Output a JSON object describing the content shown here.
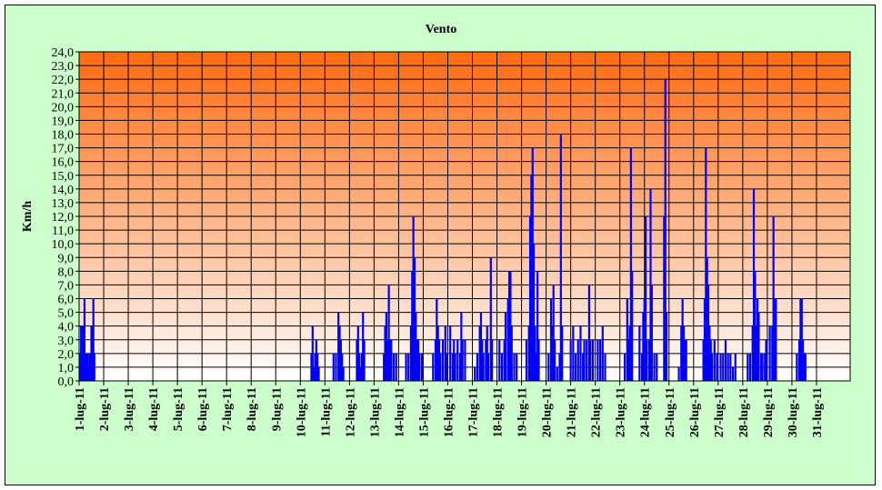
{
  "chart_data": {
    "type": "bar",
    "title": "Vento",
    "ylabel": "Km/h",
    "xlabel": "",
    "ylim": [
      0,
      24
    ],
    "ytick_step": 1,
    "grid": true,
    "legend": false,
    "colors": {
      "series": "#0000ff",
      "plot_top": "#ff6a10",
      "plot_bottom": "#ffffff",
      "chart_background": "#ccffcc",
      "grid": "#000000"
    },
    "x_tick_labels": [
      "1-lug-11",
      "2-lug-11",
      "3-lug-11",
      "4-lug-11",
      "5-lug-11",
      "6-lug-11",
      "7-lug-11",
      "8-lug-11",
      "9-lug-11",
      "10-lug-11",
      "11-lug-11",
      "12-lug-11",
      "13-lug-11",
      "14-lug-11",
      "15-lug-11",
      "16-lug-11",
      "17-lug-11",
      "18-lug-11",
      "19-lug-11",
      "20-lug-11",
      "21-lug-11",
      "22-lug-11",
      "23-lug-11",
      "24-lug-11",
      "25-lug-11",
      "26-lug-11",
      "27-lug-11",
      "28-lug-11",
      "29-lug-11",
      "30-lug-11",
      "31-lug-11"
    ],
    "x_value_unit": "days",
    "series": [
      {
        "points": [
          [
            1.05,
            2
          ],
          [
            1.08,
            4
          ],
          [
            1.12,
            1
          ],
          [
            1.15,
            4
          ],
          [
            1.18,
            2
          ],
          [
            1.22,
            6
          ],
          [
            1.26,
            1
          ],
          [
            1.3,
            2
          ],
          [
            1.34,
            2
          ],
          [
            1.38,
            1
          ],
          [
            1.42,
            2
          ],
          [
            1.46,
            2
          ],
          [
            1.5,
            4
          ],
          [
            1.54,
            4
          ],
          [
            1.58,
            6
          ],
          [
            1.62,
            2
          ],
          [
            10.45,
            2
          ],
          [
            10.5,
            4
          ],
          [
            10.55,
            1
          ],
          [
            10.6,
            2
          ],
          [
            10.65,
            3
          ],
          [
            10.7,
            2
          ],
          [
            10.75,
            1
          ],
          [
            11.35,
            2
          ],
          [
            11.45,
            2
          ],
          [
            11.55,
            5
          ],
          [
            11.6,
            4
          ],
          [
            11.65,
            3
          ],
          [
            11.7,
            2
          ],
          [
            11.75,
            1
          ],
          [
            12.3,
            3
          ],
          [
            12.35,
            4
          ],
          [
            12.4,
            2
          ],
          [
            12.45,
            1
          ],
          [
            12.5,
            2
          ],
          [
            12.55,
            5
          ],
          [
            12.6,
            3
          ],
          [
            13.4,
            2
          ],
          [
            13.45,
            4
          ],
          [
            13.5,
            5
          ],
          [
            13.55,
            3
          ],
          [
            13.6,
            7
          ],
          [
            13.65,
            3
          ],
          [
            13.7,
            3
          ],
          [
            13.8,
            2
          ],
          [
            13.9,
            2
          ],
          [
            14.3,
            2
          ],
          [
            14.4,
            2
          ],
          [
            14.5,
            4
          ],
          [
            14.55,
            8
          ],
          [
            14.6,
            12
          ],
          [
            14.65,
            9
          ],
          [
            14.7,
            5
          ],
          [
            14.75,
            3
          ],
          [
            14.8,
            3
          ],
          [
            14.85,
            2
          ],
          [
            14.95,
            2
          ],
          [
            15.4,
            2
          ],
          [
            15.5,
            3
          ],
          [
            15.55,
            6
          ],
          [
            15.6,
            4
          ],
          [
            15.65,
            3
          ],
          [
            15.7,
            2
          ],
          [
            15.8,
            3
          ],
          [
            15.9,
            4
          ],
          [
            15.95,
            2
          ],
          [
            16.1,
            4
          ],
          [
            16.2,
            2
          ],
          [
            16.25,
            3
          ],
          [
            16.3,
            2
          ],
          [
            16.4,
            3
          ],
          [
            16.5,
            2
          ],
          [
            16.55,
            5
          ],
          [
            16.6,
            3
          ],
          [
            16.7,
            3
          ],
          [
            17.1,
            1
          ],
          [
            17.2,
            2
          ],
          [
            17.3,
            4
          ],
          [
            17.35,
            5
          ],
          [
            17.4,
            3
          ],
          [
            17.45,
            2
          ],
          [
            17.55,
            3
          ],
          [
            17.6,
            4
          ],
          [
            17.65,
            2
          ],
          [
            17.75,
            9
          ],
          [
            17.8,
            3
          ],
          [
            18.1,
            3
          ],
          [
            18.2,
            2
          ],
          [
            18.3,
            3
          ],
          [
            18.35,
            5
          ],
          [
            18.45,
            6
          ],
          [
            18.5,
            8
          ],
          [
            18.55,
            8
          ],
          [
            18.6,
            4
          ],
          [
            18.7,
            2
          ],
          [
            18.8,
            2
          ],
          [
            19.2,
            3
          ],
          [
            19.3,
            4
          ],
          [
            19.35,
            12
          ],
          [
            19.4,
            15
          ],
          [
            19.45,
            17
          ],
          [
            19.5,
            10
          ],
          [
            19.55,
            4
          ],
          [
            19.6,
            2
          ],
          [
            19.65,
            8
          ],
          [
            19.7,
            3
          ],
          [
            20.1,
            2
          ],
          [
            20.2,
            6
          ],
          [
            20.25,
            4
          ],
          [
            20.3,
            7
          ],
          [
            20.35,
            3
          ],
          [
            20.45,
            1
          ],
          [
            20.55,
            2
          ],
          [
            20.6,
            18
          ],
          [
            20.65,
            4
          ],
          [
            21.0,
            3
          ],
          [
            21.1,
            4
          ],
          [
            21.2,
            2
          ],
          [
            21.3,
            3
          ],
          [
            21.4,
            4
          ],
          [
            21.5,
            2
          ],
          [
            21.55,
            3
          ],
          [
            21.65,
            3
          ],
          [
            21.75,
            7
          ],
          [
            21.8,
            3
          ],
          [
            21.9,
            3
          ],
          [
            22.1,
            3
          ],
          [
            22.2,
            3
          ],
          [
            22.3,
            4
          ],
          [
            22.4,
            2
          ],
          [
            23.2,
            2
          ],
          [
            23.3,
            6
          ],
          [
            23.35,
            3
          ],
          [
            23.4,
            4
          ],
          [
            23.45,
            17
          ],
          [
            23.5,
            8
          ],
          [
            23.8,
            4
          ],
          [
            23.9,
            2
          ],
          [
            23.95,
            5
          ],
          [
            24.0,
            6
          ],
          [
            24.05,
            12
          ],
          [
            24.1,
            3
          ],
          [
            24.2,
            3
          ],
          [
            24.25,
            14
          ],
          [
            24.3,
            7
          ],
          [
            24.4,
            2
          ],
          [
            24.5,
            2
          ],
          [
            24.8,
            12
          ],
          [
            24.85,
            22
          ],
          [
            24.9,
            5
          ],
          [
            25.4,
            1
          ],
          [
            25.5,
            4
          ],
          [
            25.55,
            6
          ],
          [
            25.6,
            4
          ],
          [
            25.65,
            3
          ],
          [
            25.7,
            3
          ],
          [
            26.4,
            3
          ],
          [
            26.45,
            6
          ],
          [
            26.5,
            17
          ],
          [
            26.55,
            9
          ],
          [
            26.6,
            7
          ],
          [
            26.65,
            4
          ],
          [
            26.7,
            3
          ],
          [
            26.75,
            2
          ],
          [
            26.85,
            3
          ],
          [
            26.95,
            2
          ],
          [
            27.1,
            2
          ],
          [
            27.2,
            2
          ],
          [
            27.3,
            3
          ],
          [
            27.4,
            2
          ],
          [
            27.5,
            2
          ],
          [
            27.6,
            1
          ],
          [
            27.7,
            2
          ],
          [
            28.2,
            2
          ],
          [
            28.3,
            2
          ],
          [
            28.4,
            4
          ],
          [
            28.45,
            14
          ],
          [
            28.5,
            8
          ],
          [
            28.55,
            4
          ],
          [
            28.6,
            6
          ],
          [
            28.65,
            5
          ],
          [
            28.75,
            2
          ],
          [
            28.8,
            2
          ],
          [
            28.9,
            2
          ],
          [
            28.95,
            3
          ],
          [
            29.1,
            4
          ],
          [
            29.2,
            4
          ],
          [
            29.25,
            12
          ],
          [
            29.3,
            6
          ],
          [
            29.35,
            6
          ],
          [
            30.2,
            2
          ],
          [
            30.3,
            3
          ],
          [
            30.35,
            6
          ],
          [
            30.4,
            6
          ],
          [
            30.45,
            3
          ],
          [
            30.5,
            2
          ],
          [
            30.55,
            2
          ]
        ]
      }
    ]
  }
}
